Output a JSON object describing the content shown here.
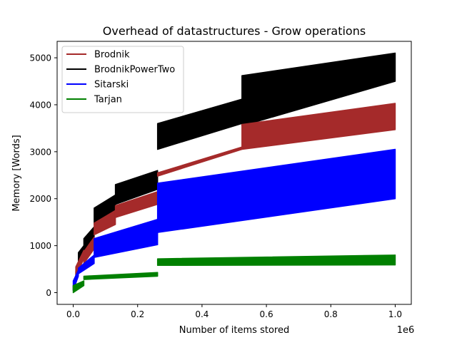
{
  "chart_data": {
    "type": "area",
    "title": "Overhead of datastructures - Grow operations",
    "xlabel": "Number of items stored",
    "ylabel": "Memory [Words]",
    "x_offset_label": "1e6",
    "x_unit_multiplier": 1000000,
    "xlim": [
      -50000,
      1050000
    ],
    "ylim": [
      -250,
      5350
    ],
    "xticks": [
      0,
      200000,
      400000,
      600000,
      800000,
      1000000
    ],
    "xtick_labels": [
      "0.0",
      "0.2",
      "0.4",
      "0.6",
      "0.8",
      "1.0"
    ],
    "yticks": [
      0,
      1000,
      2000,
      3000,
      4000,
      5000
    ],
    "ytick_labels": [
      "0",
      "1000",
      "2000",
      "3000",
      "4000",
      "5000"
    ],
    "grid": false,
    "legend_position": "upper-left",
    "series": [
      {
        "name": "BrodnikPowerTwo",
        "color": "#000000",
        "bands": [
          {
            "x": [
              0,
              8000
            ],
            "low": [
              50,
              200
            ],
            "high": [
              150,
              350
            ]
          },
          {
            "x": [
              8000,
              16000
            ],
            "low": [
              300,
              450
            ],
            "high": [
              450,
              600
            ]
          },
          {
            "x": [
              16000,
              33000
            ],
            "low": [
              550,
              720
            ],
            "high": [
              850,
              1000
            ]
          },
          {
            "x": [
              33000,
              65000
            ],
            "low": [
              780,
              950
            ],
            "high": [
              1150,
              1400
            ]
          },
          {
            "x": [
              65000,
              131000
            ],
            "low": [
              1450,
              1680
            ],
            "high": [
              1800,
              2080
            ]
          },
          {
            "x": [
              131000,
              262000
            ],
            "low": [
              1880,
              2200
            ],
            "high": [
              2300,
              2600
            ]
          },
          {
            "x": [
              262000,
              524000
            ],
            "low": [
              3050,
              3600
            ],
            "high": [
              3600,
              4120
            ]
          },
          {
            "x": [
              524000,
              1000000
            ],
            "low": [
              3550,
              4500
            ],
            "high": [
              4620,
              5100
            ]
          }
        ]
      },
      {
        "name": "Brodnik",
        "color": "#a52a2a",
        "bands": [
          {
            "x": [
              8000,
              33000
            ],
            "low": [
              350,
              720
            ],
            "high": [
              550,
              900
            ]
          },
          {
            "x": [
              33000,
              65000
            ],
            "low": [
              620,
              930
            ],
            "high": [
              870,
              1180
            ]
          },
          {
            "x": [
              65000,
              131000
            ],
            "low": [
              1230,
              1450
            ],
            "high": [
              1480,
              1750
            ]
          },
          {
            "x": [
              131000,
              262000
            ],
            "low": [
              1600,
              1880
            ],
            "high": [
              1850,
              2150
            ]
          },
          {
            "x": [
              262000,
              524000
            ],
            "low": [
              2480,
              3050
            ],
            "high": [
              2550,
              3100
            ]
          },
          {
            "x": [
              524000,
              1000000
            ],
            "low": [
              3050,
              3470
            ],
            "high": [
              3580,
              4030
            ]
          }
        ]
      },
      {
        "name": "Sitarski",
        "color": "#0000ff",
        "bands": [
          {
            "x": [
              0,
              16000
            ],
            "low": [
              50,
              350
            ],
            "high": [
              250,
              480
            ]
          },
          {
            "x": [
              16000,
              65000
            ],
            "low": [
              400,
              620
            ],
            "high": [
              520,
              800
            ]
          },
          {
            "x": [
              65000,
              262000
            ],
            "low": [
              750,
              1020
            ],
            "high": [
              1150,
              1560
            ]
          },
          {
            "x": [
              262000,
              1000000
            ],
            "low": [
              1280,
              2000
            ],
            "high": [
              2330,
              3050
            ]
          }
        ]
      },
      {
        "name": "Tarjan",
        "color": "#008000",
        "bands": [
          {
            "x": [
              0,
              33000
            ],
            "low": [
              0,
              150
            ],
            "high": [
              150,
              250
            ]
          },
          {
            "x": [
              33000,
              262000
            ],
            "low": [
              280,
              350
            ],
            "high": [
              350,
              430
            ]
          },
          {
            "x": [
              262000,
              1000000
            ],
            "low": [
              580,
              590
            ],
            "high": [
              720,
              800
            ]
          }
        ]
      }
    ],
    "legend_order": [
      "Brodnik",
      "BrodnikPowerTwo",
      "Sitarski",
      "Tarjan"
    ]
  }
}
